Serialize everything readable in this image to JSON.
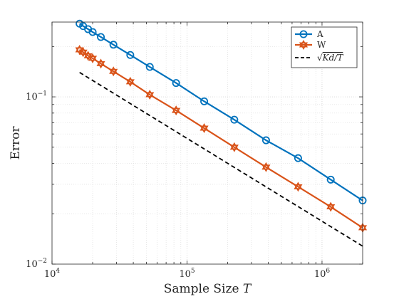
{
  "chart_data": {
    "type": "line",
    "xscale": "log",
    "yscale": "log",
    "xlim": [
      10000,
      2000000
    ],
    "ylim": [
      0.01,
      0.28
    ],
    "grid": true,
    "legend_position": "top-right",
    "xlabel": "Sample Size",
    "xlabel_var": "T",
    "ylabel": "Error",
    "x_ticks": [
      {
        "value": 10000,
        "base": "10",
        "exp": "4"
      },
      {
        "value": 100000,
        "base": "10",
        "exp": "5"
      },
      {
        "value": 1000000,
        "base": "10",
        "exp": "6"
      }
    ],
    "y_ticks": [
      {
        "value": 0.01,
        "base": "10",
        "exp": "−2"
      },
      {
        "value": 0.1,
        "base": "10",
        "exp": "−1"
      }
    ],
    "series": [
      {
        "name": "A",
        "color": "#0072BD",
        "marker": "circle",
        "line": "solid",
        "x": [
          16000,
          17000,
          18500,
          20000,
          23000,
          28500,
          38000,
          53000,
          83000,
          134000,
          224000,
          385000,
          665000,
          1160000,
          2000000
        ],
        "y": [
          0.274,
          0.265,
          0.254,
          0.244,
          0.228,
          0.205,
          0.178,
          0.151,
          0.121,
          0.094,
          0.073,
          0.055,
          0.043,
          0.032,
          0.024
        ]
      },
      {
        "name": "W",
        "color": "#D95319",
        "marker": "hexagram",
        "line": "solid",
        "x": [
          16000,
          17000,
          18500,
          20000,
          23000,
          28500,
          38000,
          53000,
          83000,
          134000,
          224000,
          385000,
          665000,
          1160000,
          2000000
        ],
        "y": [
          0.191,
          0.185,
          0.176,
          0.17,
          0.158,
          0.142,
          0.123,
          0.103,
          0.083,
          0.065,
          0.05,
          0.038,
          0.029,
          0.022,
          0.0165
        ]
      },
      {
        "name": "√(Kd/T)",
        "color": "#000000",
        "marker": "none",
        "line": "dashed",
        "x": [
          16000,
          2000000
        ],
        "y": [
          0.14,
          0.0128
        ]
      }
    ]
  }
}
